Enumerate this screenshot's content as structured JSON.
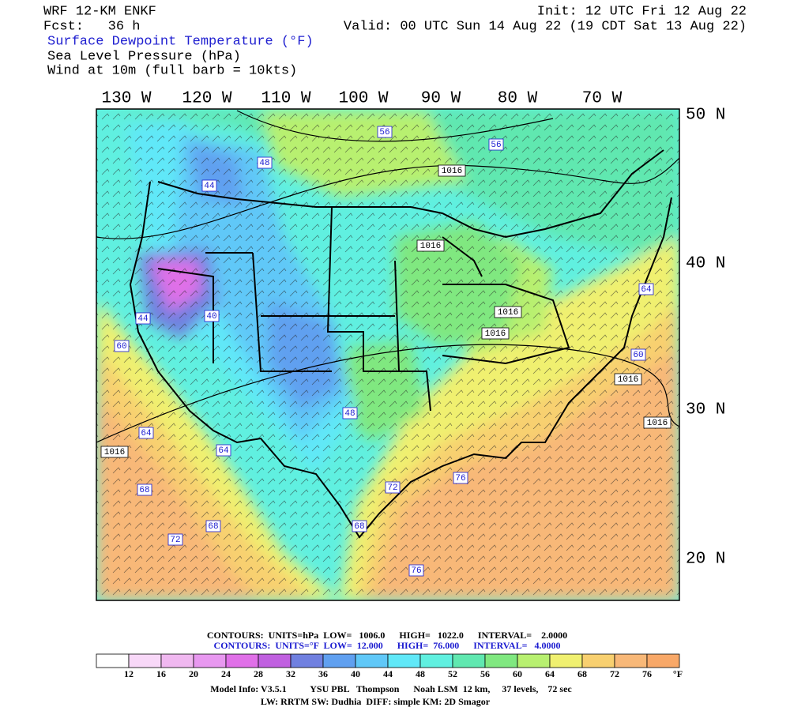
{
  "header": {
    "model": "WRF 12-KM ENKF",
    "init": "Init: 12 UTC Fri 12 Aug 22",
    "fcst": "Fcst:   36 h",
    "valid": "Valid: 00 UTC Sun 14 Aug 22 (19 CDT Sat 13 Aug 22)",
    "fields": [
      "Surface Dewpoint Temperature (°F)",
      "Sea Level Pressure (hPa)",
      "Wind at 10m (full barb = 10kts)"
    ]
  },
  "axes": {
    "lon_labels": [
      "130 W",
      "120 W",
      "110 W",
      "100 W",
      "90 W",
      "80 W",
      "70 W"
    ],
    "lat_labels": [
      "50 N",
      "40 N",
      "30 N",
      "20 N"
    ]
  },
  "map_labels": [
    "56",
    "48",
    "1016",
    "44",
    "1016",
    "40",
    "44",
    "1016",
    "1016",
    "64",
    "60",
    "1016",
    "1016",
    "48",
    "64",
    "64",
    "1016",
    "76",
    "68",
    "72",
    "68",
    "68",
    "72",
    "76",
    "60",
    "56"
  ],
  "footer": {
    "contours_slp": "CONTOURS:  UNITS=hPa  LOW=   1006.0      HIGH=   1022.0      INTERVAL=    2.0000",
    "contours_td": "CONTOURS:  UNITS=°F  LOW=  12.000      HIGH=  76.000      INTERVAL=   4.0000",
    "colorbar": {
      "labels": [
        12,
        16,
        20,
        24,
        28,
        32,
        36,
        40,
        44,
        48,
        52,
        56,
        60,
        64,
        68,
        72,
        76
      ],
      "unit": "°F",
      "colors": [
        "#ffffff",
        "#f8d8f8",
        "#f0b8f0",
        "#e898f0",
        "#e070e8",
        "#c060e0",
        "#7080e0",
        "#60a0f0",
        "#60c8f8",
        "#60e8f8",
        "#60f0e0",
        "#60e8b0",
        "#80e880",
        "#b8f070",
        "#f0f070",
        "#f8d070",
        "#f8b878",
        "#f8a868"
      ]
    },
    "model_info": "Model Info: V3.5.1          YSU PBL   Thompson      Noah LSM  12 km,     37 levels,    72 sec",
    "physics": "LW: RRTM SW: Dudhia  DIFF: simple KM: 2D Smagor"
  }
}
